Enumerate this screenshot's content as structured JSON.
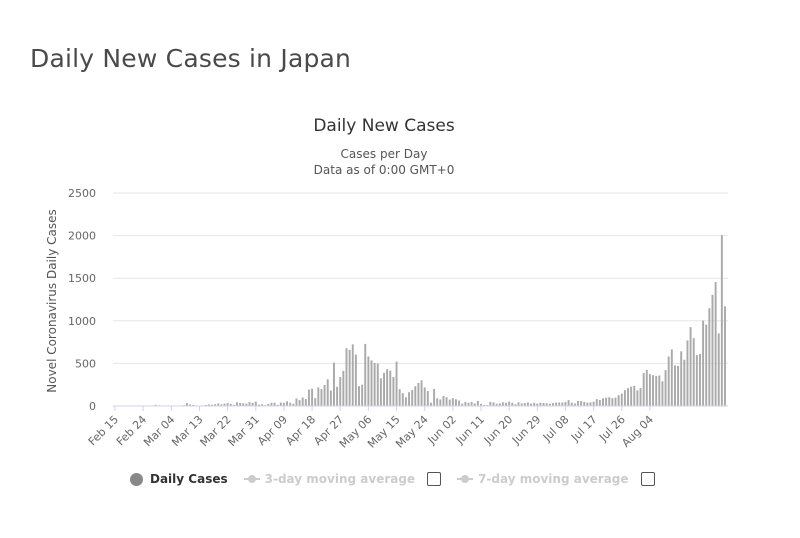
{
  "page": {
    "heading": "Daily New Cases in Japan"
  },
  "chart_data": {
    "type": "bar",
    "title": "Daily New Cases",
    "subtitle_line1": "Cases per Day",
    "subtitle_line2": "Data as of 0:00 GMT+0",
    "ylabel": "Novel Coronavirus Daily Cases",
    "xlabel": "",
    "ylim": [
      0,
      2500
    ],
    "y_ticks": [
      "0",
      "500",
      "1000",
      "1500",
      "2000",
      "2500"
    ],
    "x_tick_labels": [
      "Feb 15",
      "Feb 24",
      "Mar 04",
      "Mar 13",
      "Mar 22",
      "Mar 31",
      "Apr 09",
      "Apr 18",
      "Apr 27",
      "May 06",
      "May 15",
      "May 24",
      "Jun 02",
      "Jun 11",
      "Jun 20",
      "Jun 29",
      "Jul 08",
      "Jul 17",
      "Jul 26",
      "Aug 04"
    ],
    "x_start": "Feb 15",
    "x_end": "Aug 04",
    "grid": true,
    "legend_position": "bottom",
    "bar_color": "#aaaaaa",
    "series": [
      {
        "name": "Daily Cases",
        "values": [
          1,
          1,
          0,
          2,
          4,
          3,
          0,
          1,
          2,
          2,
          1,
          3,
          5,
          14,
          8,
          4,
          6,
          2,
          3,
          3,
          4,
          5,
          9,
          34,
          19,
          12,
          5,
          3,
          7,
          12,
          18,
          15,
          21,
          30,
          20,
          28,
          33,
          25,
          14,
          43,
          35,
          31,
          28,
          45,
          38,
          52,
          16,
          21,
          10,
          25,
          38,
          39,
          15,
          41,
          37,
          55,
          39,
          27,
          88,
          69,
          100,
          82,
          192,
          203,
          92,
          218,
          199,
          247,
          313,
          182,
          508,
          226,
          341,
          413,
          678,
          660,
          724,
          604,
          233,
          250,
          729,
          582,
          535,
          505,
          498,
          325,
          390,
          432,
          415,
          340,
          521,
          197,
          151,
          101,
          162,
          188,
          232,
          271,
          302,
          218,
          175,
          38,
          200,
          91,
          77,
          117,
          103,
          75,
          90,
          79,
          64,
          28,
          47,
          38,
          48,
          31,
          60,
          25,
          12,
          10,
          48,
          43,
          26,
          31,
          43,
          38,
          51,
          38,
          21,
          43,
          30,
          36,
          42,
          28,
          37,
          28,
          37,
          35,
          33,
          26,
          34,
          40,
          41,
          41,
          48,
          69,
          40,
          30,
          58,
          58,
          48,
          40,
          43,
          50,
          81,
          70,
          90,
          97,
          103,
          91,
          98,
          127,
          146,
          186,
          209,
          226,
          236,
          183,
          211,
          388,
          423,
          374,
          362,
          354,
          358,
          290,
          421,
          581,
          664,
          476,
          470,
          642,
          543,
          770,
          926,
          796,
          598,
          611,
          1002,
          955,
          1148,
          1305,
          1454,
          852,
          2005,
          1170
        ]
      },
      {
        "name": "3-day moving average",
        "enabled": false
      },
      {
        "name": "7-day moving average",
        "enabled": false
      }
    ]
  },
  "legend": {
    "daily_cases_label": "Daily Cases",
    "ma3_label": "3-day moving average",
    "ma7_label": "7-day moving average"
  }
}
